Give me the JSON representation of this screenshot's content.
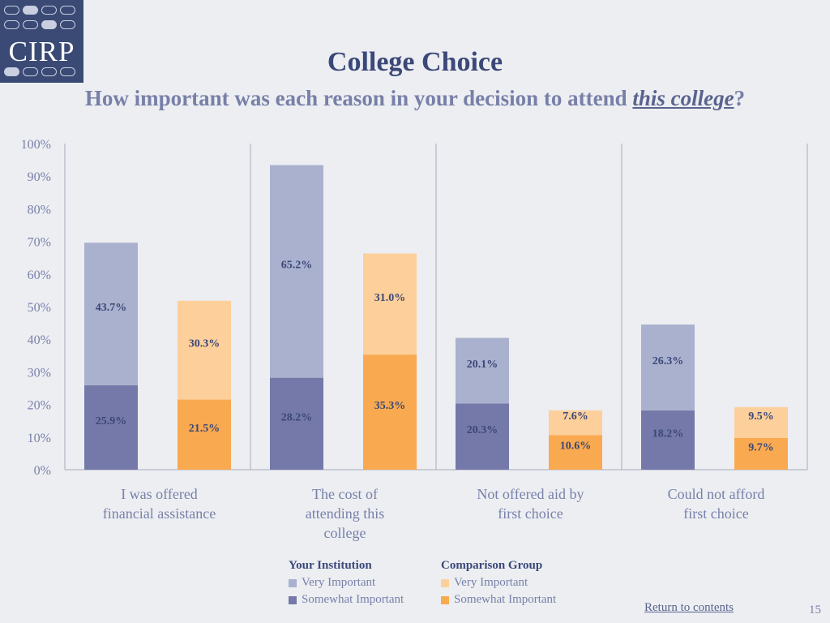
{
  "logo": {
    "text": "CIRP"
  },
  "title": "College Choice",
  "subtitle": {
    "before": "How important was each reason in your decision to attend ",
    "emphasis": "this college",
    "after": "?"
  },
  "chart_data": {
    "type": "bar",
    "stacked": true,
    "ylim": [
      0,
      100
    ],
    "yticks": [
      "0%",
      "10%",
      "20%",
      "30%",
      "40%",
      "50%",
      "60%",
      "70%",
      "80%",
      "90%",
      "100%"
    ],
    "grid": false,
    "categories": [
      [
        "I was offered",
        "financial assistance"
      ],
      [
        "The cost of",
        "attending this",
        "college"
      ],
      [
        "Not offered aid by",
        "first choice"
      ],
      [
        "Could not afford",
        "first choice"
      ]
    ],
    "groups": [
      {
        "name": "Your Institution",
        "series": [
          {
            "name": "Somewhat Important",
            "values": [
              25.9,
              28.2,
              20.3,
              18.2
            ],
            "labels": [
              "25.9%",
              "28.2%",
              "20.3%",
              "18.2%"
            ],
            "color": "#7479a9"
          },
          {
            "name": "Very Important",
            "values": [
              43.7,
              65.2,
              20.1,
              26.3
            ],
            "labels": [
              "43.7%",
              "65.2%",
              "20.1%",
              "26.3%"
            ],
            "color": "#a9b1ce"
          }
        ]
      },
      {
        "name": "Comparison Group",
        "series": [
          {
            "name": "Somewhat Important",
            "values": [
              21.5,
              35.3,
              10.6,
              9.7
            ],
            "labels": [
              "21.5%",
              "35.3%",
              "10.6%",
              "9.7%"
            ],
            "color": "#f9a94f"
          },
          {
            "name": "Very Important",
            "values": [
              30.3,
              31.0,
              7.6,
              9.5
            ],
            "labels": [
              "30.3%",
              "31.0%",
              "7.6%",
              "9.5%"
            ],
            "color": "#fdcf9a"
          }
        ]
      }
    ],
    "legend_position": "bottom"
  },
  "legend": {
    "your_institution": {
      "header": "Your Institution",
      "very": "Very Important",
      "somewhat": "Somewhat Important",
      "very_color": "#a9b1ce",
      "somewhat_color": "#7479a9"
    },
    "comparison": {
      "header": "Comparison Group",
      "very": "Very Important",
      "somewhat": "Somewhat Important",
      "very_color": "#fdcf9a",
      "somewhat_color": "#f9a94f"
    }
  },
  "footer": {
    "link": "Return to contents",
    "page": "15"
  }
}
